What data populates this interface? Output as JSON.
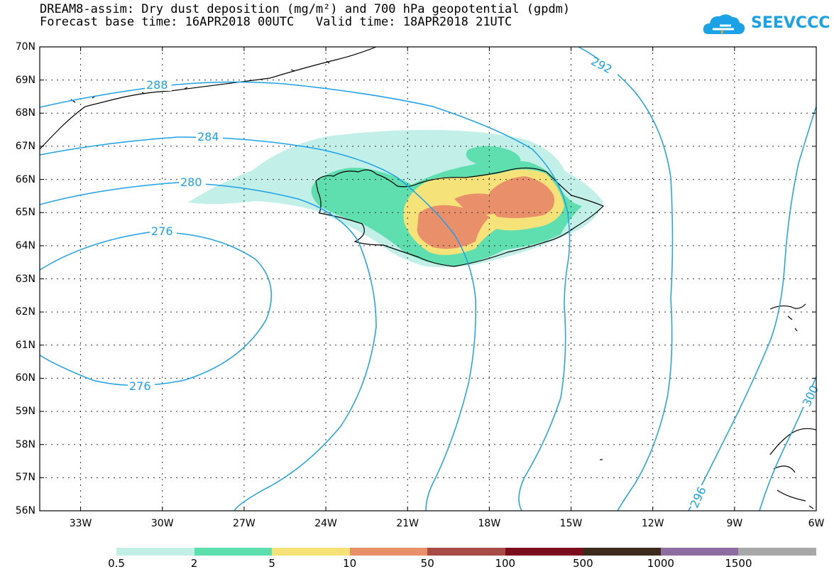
{
  "title_line1": "DREAM8-assim: Dry dust deposition (mg/m²) and 700 hPa geopotential (gpdm)",
  "title_line2": "Forecast base time: 16APR2018 00UTC   Valid time: 18APR2018 21UTC",
  "logo_text": "SEEVCCC",
  "lat_labels": [
    "70N",
    "69N",
    "68N",
    "67N",
    "66N",
    "65N",
    "64N",
    "63N",
    "62N",
    "61N",
    "60N",
    "59N",
    "58N",
    "57N",
    "56N"
  ],
  "lon_labels": [
    "33W",
    "30W",
    "27W",
    "24W",
    "21W",
    "18W",
    "15W",
    "12W",
    "9W",
    "6W"
  ],
  "contour_labels": [
    "288",
    "284",
    "280",
    "276",
    "276",
    "292",
    "296",
    "300"
  ],
  "legend": {
    "colors": [
      "#c2f0e8",
      "#5fdfb0",
      "#f5e278",
      "#e9906a",
      "#a64c45",
      "#7a0c1e",
      "#3c2a1c",
      "#8e6ea0",
      "#a8a8a8"
    ],
    "labels": [
      "0.5",
      "2",
      "5",
      "10",
      "50",
      "100",
      "500",
      "1000",
      "1500"
    ]
  },
  "colors": {
    "contour": "#1da1e8",
    "coast": "#000000"
  }
}
